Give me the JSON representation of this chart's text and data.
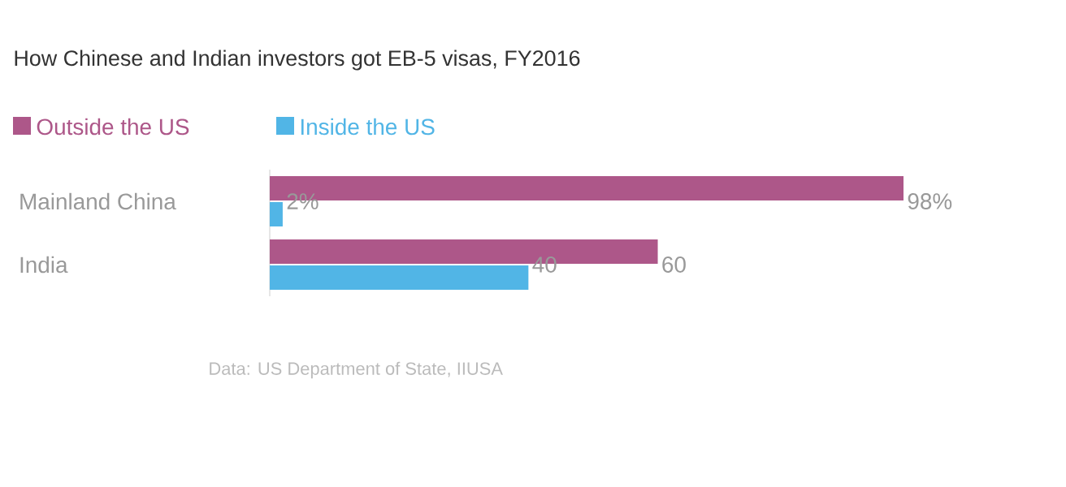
{
  "chart_data": {
    "type": "bar",
    "orientation": "horizontal",
    "title": "How Chinese and Indian investors got EB-5 visas, FY2016",
    "categories": [
      "Mainland China",
      "India"
    ],
    "series": [
      {
        "name": "Outside the US",
        "color": "#ad5789",
        "values": [
          98,
          60
        ],
        "value_labels": [
          "98%",
          "60"
        ]
      },
      {
        "name": "Inside the US",
        "color": "#51b5e6",
        "values": [
          2,
          40
        ],
        "value_labels": [
          "2%",
          "40"
        ]
      }
    ],
    "tick_labels": "y",
    "legend": "top left",
    "annotations": [
      "Data: US Department of State, IIUSA"
    ]
  }
}
